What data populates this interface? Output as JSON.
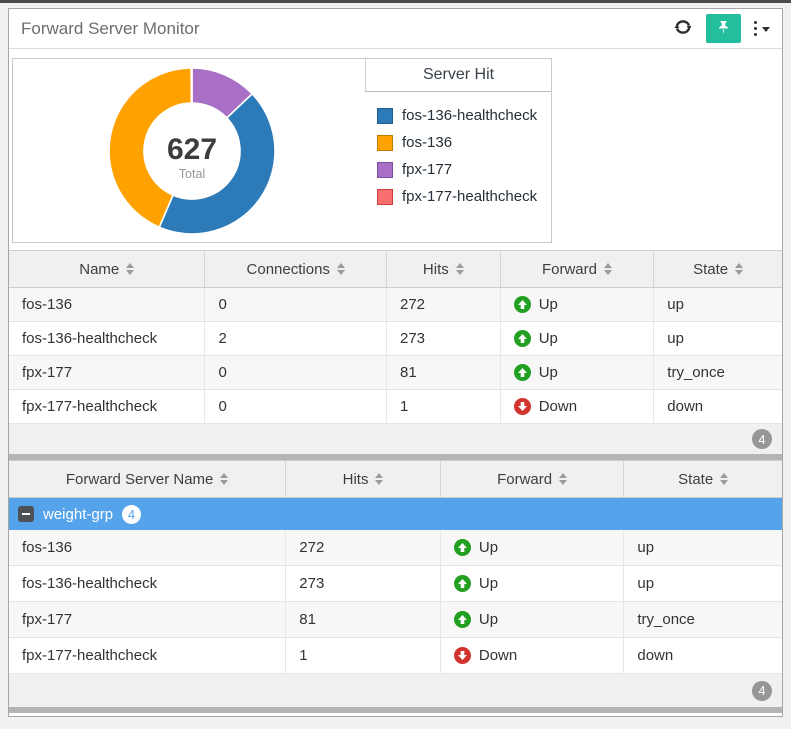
{
  "widget": {
    "title": "Forward Server Monitor",
    "toolbar": {
      "refresh_icon": "refresh-icon",
      "pin_icon": "pushpin-icon",
      "menu_icon": "kebab-menu-icon",
      "pin_button_color": "#22be9e"
    }
  },
  "chart_data": {
    "type": "pie",
    "subtype": "donut",
    "legend_title": "Server Hit",
    "total": "627",
    "total_label": "Total",
    "legend_position": "right",
    "series": [
      {
        "name": "fos-136-healthcheck",
        "value": 273,
        "color": "#2d7ab9",
        "border_color": "#1f5d92"
      },
      {
        "name": "fos-136",
        "value": 272,
        "color": "#ffa200",
        "border_color": "#c07c00"
      },
      {
        "name": "fpx-177",
        "value": 81,
        "color": "#a96fc7",
        "border_color": "#7d4fa0"
      },
      {
        "name": "fpx-177-healthcheck",
        "value": 1,
        "color": "#f96e6e",
        "border_color": "#d13c3c"
      }
    ],
    "draw_order_clockwise_from_top": [
      2,
      0,
      1,
      3
    ]
  },
  "colors": {
    "forward_up": "#22a022",
    "forward_down": "#d23430",
    "group_row_blue": "#55a3ea"
  },
  "tables": {
    "servers": {
      "columns": [
        "Name",
        "Connections",
        "Hits",
        "Forward",
        "State"
      ],
      "rows": [
        {
          "name": "fos-136",
          "connections": "0",
          "hits": "272",
          "forward": "Up",
          "dir": "up",
          "state": "up"
        },
        {
          "name": "fos-136-healthcheck",
          "connections": "2",
          "hits": "273",
          "forward": "Up",
          "dir": "up",
          "state": "up"
        },
        {
          "name": "fpx-177",
          "connections": "0",
          "hits": "81",
          "forward": "Up",
          "dir": "up",
          "state": "try_once"
        },
        {
          "name": "fpx-177-healthcheck",
          "connections": "0",
          "hits": "1",
          "forward": "Down",
          "dir": "down",
          "state": "down"
        }
      ],
      "count_badge": "4"
    },
    "groups": {
      "columns": [
        "Forward Server Name",
        "Hits",
        "Forward",
        "State"
      ],
      "group_row": {
        "label": "weight-grp",
        "count": "4"
      },
      "rows": [
        {
          "name": "fos-136",
          "hits": "272",
          "forward": "Up",
          "dir": "up",
          "state": "up"
        },
        {
          "name": "fos-136-healthcheck",
          "hits": "273",
          "forward": "Up",
          "dir": "up",
          "state": "up"
        },
        {
          "name": "fpx-177",
          "hits": "81",
          "forward": "Up",
          "dir": "up",
          "state": "try_once"
        },
        {
          "name": "fpx-177-healthcheck",
          "hits": "1",
          "forward": "Down",
          "dir": "down",
          "state": "down"
        }
      ],
      "count_badge": "4"
    }
  }
}
